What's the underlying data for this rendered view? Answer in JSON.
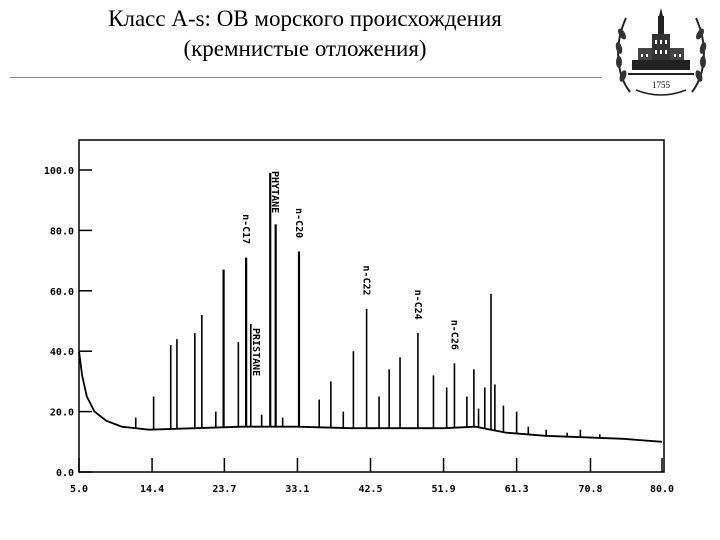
{
  "slide": {
    "title_line1": "Класс A-s: ОВ морского происхождения",
    "title_line2": "(кремнистые отложения)",
    "emblem_year": "1755"
  },
  "chart_data": {
    "type": "line",
    "title": "",
    "xlabel": "",
    "ylabel": "",
    "xlim": [
      5.0,
      80.0
    ],
    "ylim": [
      0.0,
      100.0
    ],
    "x_ticks": [
      "5.0",
      "14.4",
      "23.7",
      "33.1",
      "42.5",
      "51.9",
      "61.3",
      "70.8",
      "80.0"
    ],
    "y_ticks": [
      "0.0",
      "20.0",
      "40.0",
      "60.0",
      "80.0",
      "100.0"
    ],
    "grid": false,
    "baseline": [
      {
        "x": 5.0,
        "y": 40
      },
      {
        "x": 5.4,
        "y": 32
      },
      {
        "x": 6.0,
        "y": 25
      },
      {
        "x": 7.0,
        "y": 20
      },
      {
        "x": 8.5,
        "y": 17
      },
      {
        "x": 10.5,
        "y": 15
      },
      {
        "x": 14.0,
        "y": 14
      },
      {
        "x": 20.0,
        "y": 14.5
      },
      {
        "x": 26.0,
        "y": 15
      },
      {
        "x": 33.0,
        "y": 15
      },
      {
        "x": 40.0,
        "y": 14.5
      },
      {
        "x": 47.0,
        "y": 14.5
      },
      {
        "x": 52.0,
        "y": 14.5
      },
      {
        "x": 56.0,
        "y": 15
      },
      {
        "x": 58.0,
        "y": 14
      },
      {
        "x": 60.0,
        "y": 13
      },
      {
        "x": 65.0,
        "y": 12
      },
      {
        "x": 70.0,
        "y": 11.5
      },
      {
        "x": 75.0,
        "y": 11
      },
      {
        "x": 80.0,
        "y": 10
      }
    ],
    "peaks": [
      {
        "x": 12.3,
        "y": 18
      },
      {
        "x": 14.6,
        "y": 25
      },
      {
        "x": 16.8,
        "y": 42
      },
      {
        "x": 17.6,
        "y": 44
      },
      {
        "x": 19.9,
        "y": 46
      },
      {
        "x": 20.8,
        "y": 52
      },
      {
        "x": 22.6,
        "y": 20
      },
      {
        "x": 23.6,
        "y": 67
      },
      {
        "x": 25.5,
        "y": 43
      },
      {
        "x": 26.5,
        "y": 71,
        "label": "n-C17"
      },
      {
        "x": 27.1,
        "y": 49,
        "label": "PRISTANE"
      },
      {
        "x": 28.5,
        "y": 19
      },
      {
        "x": 29.6,
        "y": 99,
        "label": "PHYTANE"
      },
      {
        "x": 30.3,
        "y": 82
      },
      {
        "x": 31.2,
        "y": 18
      },
      {
        "x": 33.3,
        "y": 73,
        "label": "n-C20"
      },
      {
        "x": 35.9,
        "y": 24
      },
      {
        "x": 37.4,
        "y": 30
      },
      {
        "x": 39.0,
        "y": 20
      },
      {
        "x": 40.3,
        "y": 40
      },
      {
        "x": 42.0,
        "y": 54,
        "label": "n-C22"
      },
      {
        "x": 43.6,
        "y": 25
      },
      {
        "x": 44.9,
        "y": 34
      },
      {
        "x": 46.3,
        "y": 38
      },
      {
        "x": 48.6,
        "y": 46,
        "label": "n-C24"
      },
      {
        "x": 50.6,
        "y": 32
      },
      {
        "x": 52.3,
        "y": 28
      },
      {
        "x": 53.3,
        "y": 36,
        "label": "n-C26"
      },
      {
        "x": 54.9,
        "y": 25
      },
      {
        "x": 55.8,
        "y": 34
      },
      {
        "x": 56.4,
        "y": 21
      },
      {
        "x": 57.2,
        "y": 28
      },
      {
        "x": 58.0,
        "y": 59
      },
      {
        "x": 58.5,
        "y": 29
      },
      {
        "x": 59.6,
        "y": 22
      },
      {
        "x": 61.3,
        "y": 20
      },
      {
        "x": 62.8,
        "y": 15
      },
      {
        "x": 65.1,
        "y": 14
      },
      {
        "x": 67.8,
        "y": 13
      },
      {
        "x": 69.5,
        "y": 14
      },
      {
        "x": 72.0,
        "y": 12.5
      }
    ]
  }
}
